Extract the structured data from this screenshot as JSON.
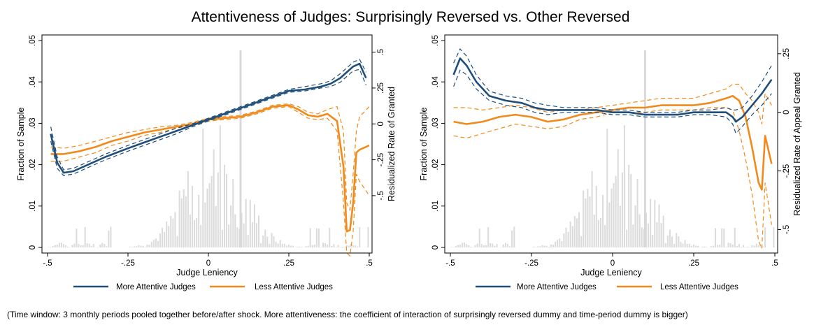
{
  "figure": {
    "title": "Attentiveness of Judges: Surprisingly Reversed vs. Other Reversed",
    "note": "(Time window: 3 monthly periods pooled together before/after shock. More attentiveness: the coefficient of interaction of surprisingly reversed dummy and time-period dummy is bigger)"
  },
  "colors": {
    "more": "#1f4e79",
    "less": "#f08a1c",
    "hist": "#dcdcdc",
    "vline": "#d9d9d9"
  },
  "chart_data": [
    {
      "type": "line",
      "xlabel": "Judge Leniency",
      "ylabel": "Fraction of Sample",
      "ylabel_right": "Residualized Rate of Granted",
      "xlim": [
        -0.5,
        0.5
      ],
      "ylim": [
        0,
        0.05
      ],
      "ylim_right": [
        -0.9,
        0.62
      ],
      "xticks": [
        -0.5,
        -0.25,
        0,
        0.25,
        0.5
      ],
      "xtick_labels": [
        "-.5",
        "-.25",
        "0",
        ".25",
        ".5"
      ],
      "yticks": [
        0,
        0.01,
        0.02,
        0.03,
        0.04,
        0.05
      ],
      "ytick_labels": [
        "0",
        ".01",
        ".02",
        ".03",
        ".04",
        ".05"
      ],
      "yticks_right": [
        -0.5,
        -0.25,
        0,
        0.25,
        0.5
      ],
      "ytick_labels_right": [
        "-.5",
        "-.25",
        "0",
        ".25",
        ".5"
      ],
      "vline_x": 0.1,
      "legend": {
        "position": "bottom",
        "entries": [
          "More Attentive Judges",
          "Less Attentive Judges"
        ]
      },
      "series": [
        {
          "name": "More Attentive Judges",
          "axis": "right",
          "x": [
            -0.49,
            -0.47,
            -0.45,
            -0.42,
            -0.38,
            -0.32,
            -0.25,
            -0.2,
            -0.15,
            -0.1,
            -0.05,
            0,
            0.05,
            0.1,
            0.15,
            0.2,
            0.25,
            0.3,
            0.35,
            0.38,
            0.41,
            0.43,
            0.45,
            0.47,
            0.49
          ],
          "y": [
            -0.07,
            -0.27,
            -0.34,
            -0.33,
            -0.29,
            -0.23,
            -0.17,
            -0.13,
            -0.09,
            -0.05,
            -0.01,
            0.03,
            0.07,
            0.11,
            0.15,
            0.19,
            0.23,
            0.24,
            0.26,
            0.28,
            0.32,
            0.36,
            0.4,
            0.42,
            0.32
          ],
          "ci_low": [
            -0.12,
            -0.31,
            -0.36,
            -0.35,
            -0.31,
            -0.25,
            -0.19,
            -0.15,
            -0.11,
            -0.07,
            -0.02,
            0.02,
            0.06,
            0.1,
            0.14,
            0.18,
            0.22,
            0.23,
            0.25,
            0.26,
            0.29,
            0.33,
            0.37,
            0.38,
            0.27
          ],
          "ci_high": [
            -0.02,
            -0.23,
            -0.32,
            -0.31,
            -0.27,
            -0.21,
            -0.15,
            -0.11,
            -0.07,
            -0.03,
            0.0,
            0.04,
            0.08,
            0.12,
            0.16,
            0.2,
            0.24,
            0.26,
            0.28,
            0.3,
            0.35,
            0.39,
            0.43,
            0.45,
            0.36
          ]
        },
        {
          "name": "Less Attentive Judges",
          "axis": "right",
          "x": [
            -0.49,
            -0.45,
            -0.4,
            -0.35,
            -0.3,
            -0.25,
            -0.2,
            -0.15,
            -0.1,
            -0.05,
            0,
            0.05,
            0.1,
            0.15,
            0.2,
            0.25,
            0.28,
            0.31,
            0.34,
            0.37,
            0.4,
            0.42,
            0.43,
            0.44,
            0.45,
            0.46,
            0.47,
            0.5
          ],
          "y": [
            -0.21,
            -0.21,
            -0.19,
            -0.16,
            -0.12,
            -0.09,
            -0.06,
            -0.04,
            -0.02,
            0.0,
            0.03,
            0.04,
            0.05,
            0.08,
            0.12,
            0.13,
            0.1,
            0.06,
            0.05,
            0.07,
            0.02,
            -0.3,
            -0.75,
            -0.74,
            -0.55,
            -0.2,
            -0.18,
            -0.15
          ],
          "ci_low": [
            -0.26,
            -0.26,
            -0.23,
            -0.2,
            -0.15,
            -0.12,
            -0.08,
            -0.06,
            -0.03,
            -0.01,
            0.02,
            0.03,
            0.04,
            0.07,
            0.11,
            0.12,
            0.08,
            0.04,
            0.03,
            0.04,
            -0.05,
            -0.55,
            -0.9,
            -0.92,
            -0.75,
            -0.35,
            -0.4,
            -0.5
          ],
          "ci_high": [
            -0.16,
            -0.17,
            -0.15,
            -0.12,
            -0.09,
            -0.06,
            -0.04,
            -0.02,
            -0.01,
            0.01,
            0.04,
            0.05,
            0.06,
            0.09,
            0.13,
            0.14,
            0.12,
            0.08,
            0.07,
            0.1,
            0.12,
            -0.05,
            -0.55,
            -0.6,
            -0.35,
            -0.05,
            0.05,
            0.12
          ]
        }
      ]
    },
    {
      "type": "line",
      "xlabel": "Judge Leniency",
      "ylabel": "Fraction of Sample",
      "ylabel_right": "Residualized Rate of Appeal Granted",
      "xlim": [
        -0.5,
        0.5
      ],
      "ylim": [
        0,
        0.05
      ],
      "ylim_right": [
        -0.6,
        0.33
      ],
      "xticks": [
        -0.5,
        -0.25,
        0,
        0.25,
        0.5
      ],
      "xtick_labels": [
        "-.5",
        "-.25",
        "0",
        ".25",
        ".5"
      ],
      "yticks": [
        0,
        0.01,
        0.02,
        0.03,
        0.04,
        0.05
      ],
      "ytick_labels": [
        "0",
        ".01",
        ".02",
        ".03",
        ".04",
        ".05"
      ],
      "yticks_right": [
        -0.5,
        -0.25,
        0,
        0.25
      ],
      "ytick_labels_right": [
        "-.5",
        "-.25",
        "0",
        ".25"
      ],
      "vline_x": 0.1,
      "legend": {
        "position": "bottom",
        "entries": [
          "More Attentive Judges",
          "Less Attentive Judges"
        ]
      },
      "series": [
        {
          "name": "More Attentive Judges",
          "axis": "right",
          "x": [
            -0.49,
            -0.47,
            -0.45,
            -0.42,
            -0.38,
            -0.33,
            -0.28,
            -0.24,
            -0.2,
            -0.15,
            -0.1,
            -0.05,
            0,
            0.05,
            0.1,
            0.15,
            0.2,
            0.25,
            0.3,
            0.35,
            0.37,
            0.38,
            0.4,
            0.43,
            0.46,
            0.49
          ],
          "y": [
            0.16,
            0.23,
            0.2,
            0.13,
            0.07,
            0.05,
            0.04,
            0.02,
            0.01,
            0.01,
            0.01,
            0.01,
            0.0,
            0.0,
            -0.01,
            -0.01,
            -0.01,
            0.0,
            0.0,
            0.0,
            -0.02,
            -0.04,
            -0.02,
            0.03,
            0.08,
            0.14
          ],
          "ci_low": [
            0.11,
            0.18,
            0.16,
            0.1,
            0.05,
            0.03,
            0.02,
            0.0,
            -0.01,
            0.0,
            0.0,
            0.0,
            -0.01,
            -0.01,
            -0.02,
            -0.02,
            -0.02,
            -0.01,
            -0.01,
            -0.02,
            -0.05,
            -0.09,
            -0.06,
            -0.01,
            0.03,
            0.08
          ],
          "ci_high": [
            0.21,
            0.27,
            0.24,
            0.16,
            0.09,
            0.07,
            0.06,
            0.04,
            0.03,
            0.02,
            0.02,
            0.02,
            0.01,
            0.01,
            0.0,
            0.0,
            0.0,
            0.01,
            0.01,
            0.02,
            0.01,
            0.01,
            0.02,
            0.07,
            0.13,
            0.2
          ]
        },
        {
          "name": "Less Attentive Judges",
          "axis": "right",
          "x": [
            -0.49,
            -0.45,
            -0.4,
            -0.35,
            -0.3,
            -0.25,
            -0.2,
            -0.15,
            -0.1,
            -0.05,
            0,
            0.05,
            0.1,
            0.15,
            0.2,
            0.25,
            0.3,
            0.35,
            0.37,
            0.39,
            0.41,
            0.43,
            0.45,
            0.46,
            0.47,
            0.49
          ],
          "y": [
            -0.04,
            -0.05,
            -0.04,
            -0.02,
            -0.01,
            -0.02,
            -0.04,
            -0.03,
            -0.01,
            0.0,
            0.01,
            0.02,
            0.02,
            0.03,
            0.03,
            0.03,
            0.04,
            0.06,
            0.07,
            0.05,
            -0.02,
            -0.15,
            -0.3,
            -0.33,
            -0.1,
            -0.22
          ],
          "ci_low": [
            -0.1,
            -0.11,
            -0.09,
            -0.07,
            -0.05,
            -0.06,
            -0.07,
            -0.06,
            -0.03,
            -0.02,
            0.0,
            0.0,
            0.0,
            0.01,
            0.01,
            0.01,
            0.02,
            0.02,
            0.01,
            -0.08,
            -0.2,
            -0.35,
            -0.55,
            -0.58,
            -0.3,
            -0.48
          ],
          "ci_high": [
            0.02,
            0.02,
            0.01,
            0.02,
            0.03,
            0.02,
            0.0,
            0.01,
            0.01,
            0.02,
            0.03,
            0.04,
            0.05,
            0.06,
            0.06,
            0.06,
            0.08,
            0.1,
            0.12,
            0.12,
            0.08,
            0.05,
            0.0,
            -0.05,
            0.08,
            0.03
          ]
        }
      ]
    }
  ]
}
